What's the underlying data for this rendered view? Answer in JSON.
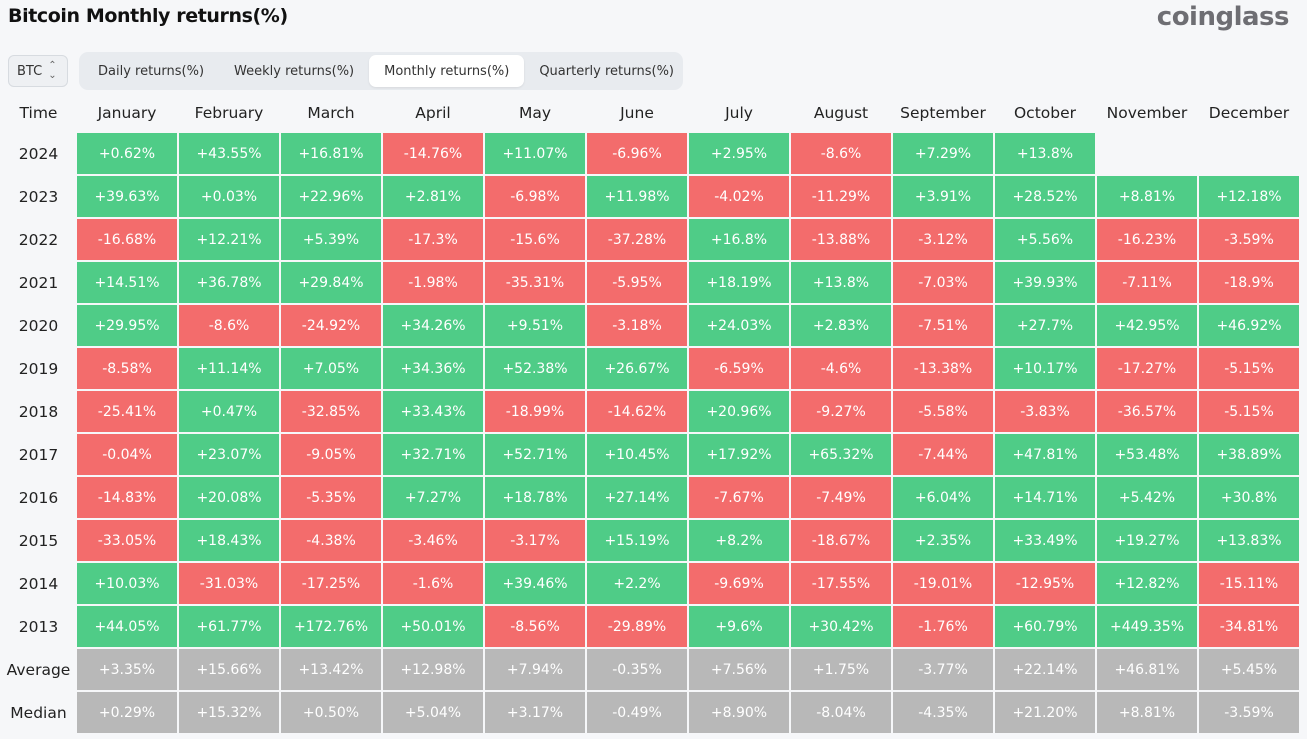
{
  "title": "Bitcoin Monthly returns(%)",
  "logo": "coinglass",
  "asset_selector": {
    "value": "BTC"
  },
  "tabs": [
    {
      "label": "Daily returns(%)",
      "active": false
    },
    {
      "label": "Weekly returns(%)",
      "active": false
    },
    {
      "label": "Monthly returns(%)",
      "active": true
    },
    {
      "label": "Quarterly returns(%)",
      "active": false
    }
  ],
  "colors": {
    "positive": "#4fcc87",
    "negative": "#f36c6c",
    "summary": "#b8b8b8"
  },
  "table": {
    "time_header": "Time",
    "months": [
      "January",
      "February",
      "March",
      "April",
      "May",
      "June",
      "July",
      "August",
      "September",
      "October",
      "November",
      "December"
    ],
    "rows": [
      {
        "year": "2024",
        "values": [
          "+0.62%",
          "+43.55%",
          "+16.81%",
          "-14.76%",
          "+11.07%",
          "-6.96%",
          "+2.95%",
          "-8.6%",
          "+7.29%",
          "+13.8%",
          "",
          ""
        ]
      },
      {
        "year": "2023",
        "values": [
          "+39.63%",
          "+0.03%",
          "+22.96%",
          "+2.81%",
          "-6.98%",
          "+11.98%",
          "-4.02%",
          "-11.29%",
          "+3.91%",
          "+28.52%",
          "+8.81%",
          "+12.18%"
        ]
      },
      {
        "year": "2022",
        "values": [
          "-16.68%",
          "+12.21%",
          "+5.39%",
          "-17.3%",
          "-15.6%",
          "-37.28%",
          "+16.8%",
          "-13.88%",
          "-3.12%",
          "+5.56%",
          "-16.23%",
          "-3.59%"
        ]
      },
      {
        "year": "2021",
        "values": [
          "+14.51%",
          "+36.78%",
          "+29.84%",
          "-1.98%",
          "-35.31%",
          "-5.95%",
          "+18.19%",
          "+13.8%",
          "-7.03%",
          "+39.93%",
          "-7.11%",
          "-18.9%"
        ]
      },
      {
        "year": "2020",
        "values": [
          "+29.95%",
          "-8.6%",
          "-24.92%",
          "+34.26%",
          "+9.51%",
          "-3.18%",
          "+24.03%",
          "+2.83%",
          "-7.51%",
          "+27.7%",
          "+42.95%",
          "+46.92%"
        ]
      },
      {
        "year": "2019",
        "values": [
          "-8.58%",
          "+11.14%",
          "+7.05%",
          "+34.36%",
          "+52.38%",
          "+26.67%",
          "-6.59%",
          "-4.6%",
          "-13.38%",
          "+10.17%",
          "-17.27%",
          "-5.15%"
        ]
      },
      {
        "year": "2018",
        "values": [
          "-25.41%",
          "+0.47%",
          "-32.85%",
          "+33.43%",
          "-18.99%",
          "-14.62%",
          "+20.96%",
          "-9.27%",
          "-5.58%",
          "-3.83%",
          "-36.57%",
          "-5.15%"
        ]
      },
      {
        "year": "2017",
        "values": [
          "-0.04%",
          "+23.07%",
          "-9.05%",
          "+32.71%",
          "+52.71%",
          "+10.45%",
          "+17.92%",
          "+65.32%",
          "-7.44%",
          "+47.81%",
          "+53.48%",
          "+38.89%"
        ]
      },
      {
        "year": "2016",
        "values": [
          "-14.83%",
          "+20.08%",
          "-5.35%",
          "+7.27%",
          "+18.78%",
          "+27.14%",
          "-7.67%",
          "-7.49%",
          "+6.04%",
          "+14.71%",
          "+5.42%",
          "+30.8%"
        ]
      },
      {
        "year": "2015",
        "values": [
          "-33.05%",
          "+18.43%",
          "-4.38%",
          "-3.46%",
          "-3.17%",
          "+15.19%",
          "+8.2%",
          "-18.67%",
          "+2.35%",
          "+33.49%",
          "+19.27%",
          "+13.83%"
        ]
      },
      {
        "year": "2014",
        "values": [
          "+10.03%",
          "-31.03%",
          "-17.25%",
          "-1.6%",
          "+39.46%",
          "+2.2%",
          "-9.69%",
          "-17.55%",
          "-19.01%",
          "-12.95%",
          "+12.82%",
          "-15.11%"
        ]
      },
      {
        "year": "2013",
        "values": [
          "+44.05%",
          "+61.77%",
          "+172.76%",
          "+50.01%",
          "-8.56%",
          "-29.89%",
          "+9.6%",
          "+30.42%",
          "-1.76%",
          "+60.79%",
          "+449.35%",
          "-34.81%"
        ]
      }
    ],
    "summary_rows": [
      {
        "label": "Average",
        "values": [
          "+3.35%",
          "+15.66%",
          "+13.42%",
          "+12.98%",
          "+7.94%",
          "-0.35%",
          "+7.56%",
          "+1.75%",
          "-3.77%",
          "+22.14%",
          "+46.81%",
          "+5.45%"
        ]
      },
      {
        "label": "Median",
        "values": [
          "+0.29%",
          "+15.32%",
          "+0.50%",
          "+5.04%",
          "+3.17%",
          "-0.49%",
          "+8.90%",
          "-8.04%",
          "-4.35%",
          "+21.20%",
          "+8.81%",
          "-3.59%"
        ]
      }
    ]
  }
}
